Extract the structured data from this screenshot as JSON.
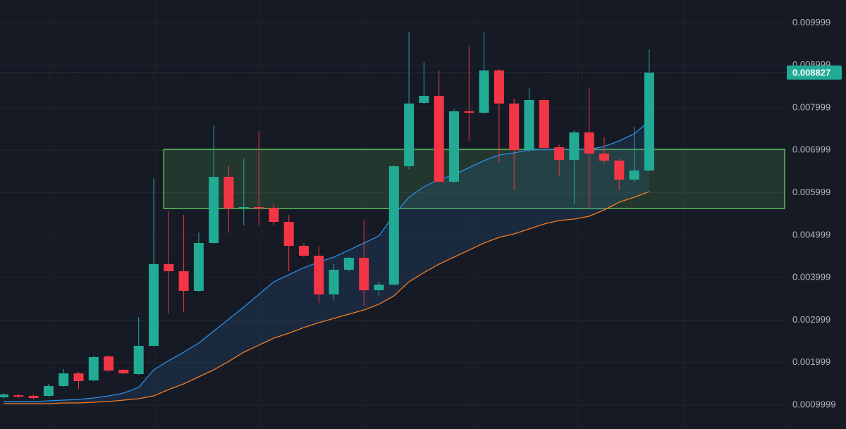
{
  "chart_data": {
    "type": "candlestick",
    "up_color": "#22ab94",
    "down_color": "#f23645",
    "grid": true,
    "ylim": [
      0.000436,
      0.010536
    ],
    "yticks": [
      0.0009999,
      0.001999,
      0.002999,
      0.003999,
      0.004999,
      0.005999,
      0.006999,
      0.007999,
      0.008999,
      0.009999
    ],
    "open": [
      0.001182,
      0.001232,
      0.001216,
      0.001216,
      0.001448,
      0.001746,
      0.00158,
      0.002144,
      0.001829,
      0.00173,
      0.002393,
      0.004317,
      0.004151,
      0.003687,
      0.004814,
      0.006373,
      0.005644,
      0.00566,
      0.005644,
      0.005312,
      0.004748,
      0.004516,
      0.003604,
      0.004184,
      0.004466,
      0.003703,
      0.003836,
      0.006622,
      0.008115,
      0.00828,
      0.006257,
      0.007915,
      0.007882,
      0.008877,
      0.008098,
      0.007003,
      0.008181,
      0.00707,
      0.006771,
      0.007418,
      0.00692,
      0.006755,
      0.006307,
      0.006522
    ],
    "high": [
      0.001282,
      0.001249,
      0.001249,
      0.001498,
      0.001846,
      0.001779,
      0.002161,
      0.002177,
      0.001846,
      0.003073,
      0.00634,
      0.005561,
      0.005478,
      0.005063,
      0.007584,
      0.006639,
      0.006804,
      0.007451,
      0.005726,
      0.005478,
      0.004814,
      0.004731,
      0.004317,
      0.004483,
      0.005345,
      0.003902,
      0.006639,
      0.009789,
      0.009076,
      0.008877,
      0.007965,
      0.009441,
      0.009789,
      0.008911,
      0.008214,
      0.008463,
      0.008214,
      0.007136,
      0.007468,
      0.008463,
      0.007302,
      0.006804,
      0.007551,
      0.009375
    ],
    "low": [
      0.001149,
      0.001166,
      0.001133,
      0.001199,
      0.001431,
      0.001381,
      0.001564,
      0.001779,
      0.00173,
      0.001713,
      0.002376,
      0.003156,
      0.003189,
      0.00367,
      0.004798,
      0.005063,
      0.005229,
      0.005229,
      0.005229,
      0.004151,
      0.004483,
      0.003405,
      0.003488,
      0.004151,
      0.003322,
      0.003571,
      0.003819,
      0.006556,
      0.008081,
      0.006224,
      0.006224,
      0.007219,
      0.007849,
      0.006721,
      0.006058,
      0.00697,
      0.00702,
      0.00639,
      0.005726,
      0.005644,
      0.006688,
      0.006058,
      0.006257,
      0.006506
    ],
    "close": [
      0.001249,
      0.001199,
      0.001166,
      0.001448,
      0.001746,
      0.001564,
      0.002128,
      0.001813,
      0.001746,
      0.002393,
      0.004317,
      0.004151,
      0.003687,
      0.004814,
      0.006373,
      0.005627,
      0.00566,
      0.005627,
      0.005312,
      0.004748,
      0.004516,
      0.003604,
      0.004184,
      0.004466,
      0.003703,
      0.003836,
      0.006622,
      0.008098,
      0.00828,
      0.006257,
      0.007915,
      0.007882,
      0.008877,
      0.008098,
      0.007003,
      0.008181,
      0.007053,
      0.006771,
      0.007418,
      0.00692,
      0.006755,
      0.006307,
      0.006522,
      0.008827
    ],
    "ma_lines": [
      {
        "color": "#2e8de0",
        "values": [
          0.001083,
          0.001083,
          0.001083,
          0.0011,
          0.001116,
          0.001133,
          0.001166,
          0.001216,
          0.001282,
          0.001415,
          0.001829,
          0.002045,
          0.002244,
          0.002459,
          0.002741,
          0.003023,
          0.003305,
          0.003604,
          0.003902,
          0.004068,
          0.004234,
          0.004367,
          0.004483,
          0.004648,
          0.004814,
          0.00498,
          0.005478,
          0.005892,
          0.006141,
          0.006307,
          0.006423,
          0.006589,
          0.006755,
          0.006887,
          0.006937,
          0.007003,
          0.00702,
          0.00702,
          0.00702,
          0.00702,
          0.007086,
          0.007219,
          0.007385,
          0.007683
        ]
      },
      {
        "color": "#f57c20",
        "values": [
          0.001033,
          0.001033,
          0.001033,
          0.001033,
          0.00105,
          0.00105,
          0.001066,
          0.001083,
          0.001116,
          0.001149,
          0.001216,
          0.001365,
          0.001498,
          0.001663,
          0.001829,
          0.002028,
          0.002244,
          0.00241,
          0.002575,
          0.002692,
          0.002824,
          0.00294,
          0.00304,
          0.003139,
          0.003239,
          0.003372,
          0.003571,
          0.003902,
          0.004118,
          0.004317,
          0.004483,
          0.004648,
          0.004814,
          0.004947,
          0.00503,
          0.005146,
          0.005262,
          0.005345,
          0.005378,
          0.005444,
          0.005594,
          0.005776,
          0.005892,
          0.006025
        ]
      }
    ],
    "zone": {
      "from_candle": 11,
      "high": 0.00702,
      "low": 0.005627,
      "color": "#5cbf5c"
    }
  }
}
